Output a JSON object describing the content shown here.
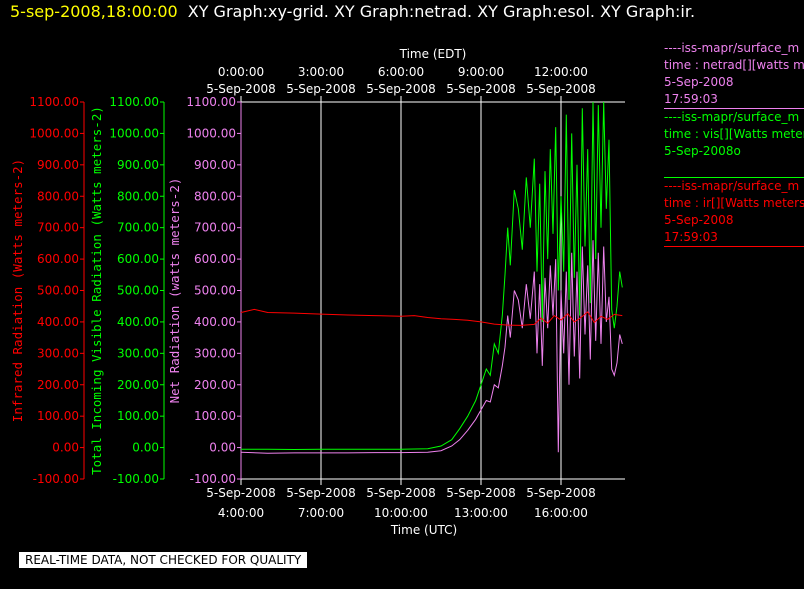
{
  "header": {
    "date_time": "5-sep-2008,18:00:00",
    "graphs": "XY Graph:xy-grid.  XY Graph:netrad.  XY Graph:esol.  XY Graph:ir."
  },
  "colors": {
    "infrared": "#ff0000",
    "visible": "#00ff00",
    "net": "#ee82ee",
    "grid": "#ffffff",
    "background": "#000000"
  },
  "legend": [
    {
      "lines": [
        "----iss-mapr/surface_m",
        "time : netrad[][watts m",
        "5-Sep-2008",
        "17:59:03"
      ],
      "color": "#ee82ee"
    },
    {
      "lines": [
        "----iss-mapr/surface_m",
        "time : vis[][Watts meter",
        "5-Sep-2008o"
      ],
      "color": "#00ff00"
    },
    {
      "lines": [
        "----iss-mapr/surface_m",
        "time : ir[][Watts meters",
        "5-Sep-2008",
        "17:59:03"
      ],
      "color": "#ff0000"
    }
  ],
  "footer": "REAL-TIME DATA, NOT CHECKED FOR QUALITY",
  "chart_data": {
    "type": "line",
    "top_axis_title": "Time (EDT)",
    "bottom_axis_title": "Time (UTC)",
    "x_hours_utc_range": [
      4.0,
      18.35
    ],
    "top_ticks": [
      {
        "hour": 4,
        "line1": "0:00:00",
        "line2": "5-Sep-2008"
      },
      {
        "hour": 7,
        "line1": "3:00:00",
        "line2": "5-Sep-2008"
      },
      {
        "hour": 10,
        "line1": "6:00:00",
        "line2": "5-Sep-2008"
      },
      {
        "hour": 13,
        "line1": "9:00:00",
        "line2": "5-Sep-2008"
      },
      {
        "hour": 16,
        "line1": "12:00:00",
        "line2": "5-Sep-2008"
      }
    ],
    "bottom_ticks": [
      {
        "hour": 4,
        "line1": "5-Sep-2008",
        "line2": "4:00:00"
      },
      {
        "hour": 7,
        "line1": "5-Sep-2008",
        "line2": "7:00:00"
      },
      {
        "hour": 10,
        "line1": "5-Sep-2008",
        "line2": "10:00:00"
      },
      {
        "hour": 13,
        "line1": "5-Sep-2008",
        "line2": "13:00:00"
      },
      {
        "hour": 16,
        "line1": "5-Sep-2008",
        "line2": "16:00:00"
      }
    ],
    "y_axes": [
      {
        "id": "infrared",
        "label": "Infrared Radiation (Watts meters-2)",
        "color": "#ff0000",
        "ylim": [
          -100,
          1100
        ],
        "ticks": [
          "1100.00",
          "1000.00",
          "900.00",
          "800.00",
          "700.00",
          "600.00",
          "500.00",
          "400.00",
          "300.00",
          "200.00",
          "100.00",
          "0.00",
          "-100.00"
        ]
      },
      {
        "id": "visible",
        "label": "Total Incoming Visible Radiation (Watts meters-2)",
        "color": "#00ff00",
        "ylim": [
          -100,
          1100
        ],
        "ticks": [
          "1100.00",
          "1000.00",
          "900.00",
          "800.00",
          "700.00",
          "600.00",
          "500.00",
          "400.00",
          "300.00",
          "200.00",
          "100.00",
          "0.00",
          "-100.00"
        ]
      },
      {
        "id": "net",
        "label": "Net Radiation (watts meters-2)",
        "color": "#ee82ee",
        "ylim": [
          -100,
          1100
        ],
        "ticks": [
          "1100.00",
          "1000.00",
          "900.00",
          "800.00",
          "700.00",
          "600.00",
          "500.00",
          "400.00",
          "300.00",
          "200.00",
          "100.00",
          "0.00",
          "-100.00"
        ]
      }
    ],
    "series": [
      {
        "id": "visible",
        "color": "#00ff00",
        "x": [
          4.0,
          5.0,
          6.0,
          7.0,
          8.0,
          9.0,
          10.0,
          11.0,
          11.5,
          11.9,
          12.2,
          12.5,
          12.8,
          13.0,
          13.2,
          13.35,
          13.5,
          13.65,
          13.8,
          13.9,
          14.0,
          14.1,
          14.25,
          14.4,
          14.55,
          14.7,
          14.85,
          15.0,
          15.1,
          15.2,
          15.3,
          15.4,
          15.5,
          15.6,
          15.7,
          15.8,
          15.9,
          16.0,
          16.1,
          16.2,
          16.3,
          16.4,
          16.5,
          16.6,
          16.7,
          16.8,
          16.9,
          17.0,
          17.1,
          17.2,
          17.3,
          17.4,
          17.5,
          17.6,
          17.7,
          17.8,
          17.9,
          18.0,
          18.1,
          18.2,
          18.3
        ],
        "y": [
          -5,
          -5,
          -6,
          -5,
          -5,
          -5,
          -5,
          -4,
          5,
          25,
          60,
          100,
          150,
          200,
          250,
          230,
          330,
          300,
          420,
          550,
          700,
          580,
          820,
          760,
          630,
          860,
          700,
          920,
          560,
          840,
          400,
          880,
          600,
          950,
          680,
          1020,
          500,
          800,
          560,
          1060,
          470,
          1000,
          540,
          900,
          420,
          1080,
          640,
          950,
          460,
          1100,
          600,
          1090,
          700,
          1100,
          760,
          980,
          440,
          380,
          450,
          560,
          510
        ]
      },
      {
        "id": "net",
        "color": "#ee82ee",
        "x": [
          4.0,
          5.0,
          6.0,
          7.0,
          8.0,
          9.0,
          10.0,
          11.0,
          11.5,
          11.9,
          12.2,
          12.5,
          12.8,
          13.0,
          13.2,
          13.35,
          13.5,
          13.65,
          13.8,
          13.9,
          14.0,
          14.1,
          14.25,
          14.4,
          14.55,
          14.7,
          14.85,
          15.0,
          15.1,
          15.2,
          15.3,
          15.4,
          15.5,
          15.6,
          15.7,
          15.8,
          15.9,
          16.0,
          16.1,
          16.2,
          16.3,
          16.4,
          16.5,
          16.6,
          16.7,
          16.8,
          16.9,
          17.0,
          17.1,
          17.2,
          17.3,
          17.4,
          17.5,
          17.6,
          17.7,
          17.8,
          17.9,
          18.0,
          18.1,
          18.2,
          18.3
        ],
        "y": [
          -15,
          -18,
          -17,
          -17,
          -17,
          -16,
          -16,
          -15,
          -10,
          5,
          25,
          55,
          90,
          120,
          150,
          145,
          200,
          190,
          260,
          320,
          420,
          350,
          500,
          470,
          380,
          520,
          410,
          560,
          300,
          520,
          260,
          540,
          380,
          580,
          420,
          600,
          -15,
          500,
          300,
          560,
          200,
          620,
          290,
          560,
          220,
          640,
          360,
          580,
          280,
          660,
          340,
          620,
          330,
          640,
          400,
          480,
          250,
          230,
          270,
          360,
          330
        ]
      },
      {
        "id": "infrared",
        "color": "#ff0000",
        "x": [
          4.0,
          4.5,
          5.0,
          6.0,
          7.0,
          8.0,
          9.0,
          10.0,
          10.5,
          11.0,
          11.5,
          12.0,
          12.5,
          13.0,
          13.5,
          14.0,
          14.5,
          15.0,
          15.25,
          15.5,
          15.75,
          16.0,
          16.25,
          16.5,
          16.75,
          17.0,
          17.25,
          17.5,
          17.75,
          18.0,
          18.3
        ],
        "y": [
          430,
          440,
          430,
          428,
          425,
          422,
          420,
          418,
          420,
          414,
          410,
          408,
          405,
          400,
          393,
          390,
          389,
          392,
          412,
          396,
          420,
          406,
          426,
          400,
          414,
          432,
          398,
          418,
          408,
          424,
          420
        ]
      }
    ]
  }
}
